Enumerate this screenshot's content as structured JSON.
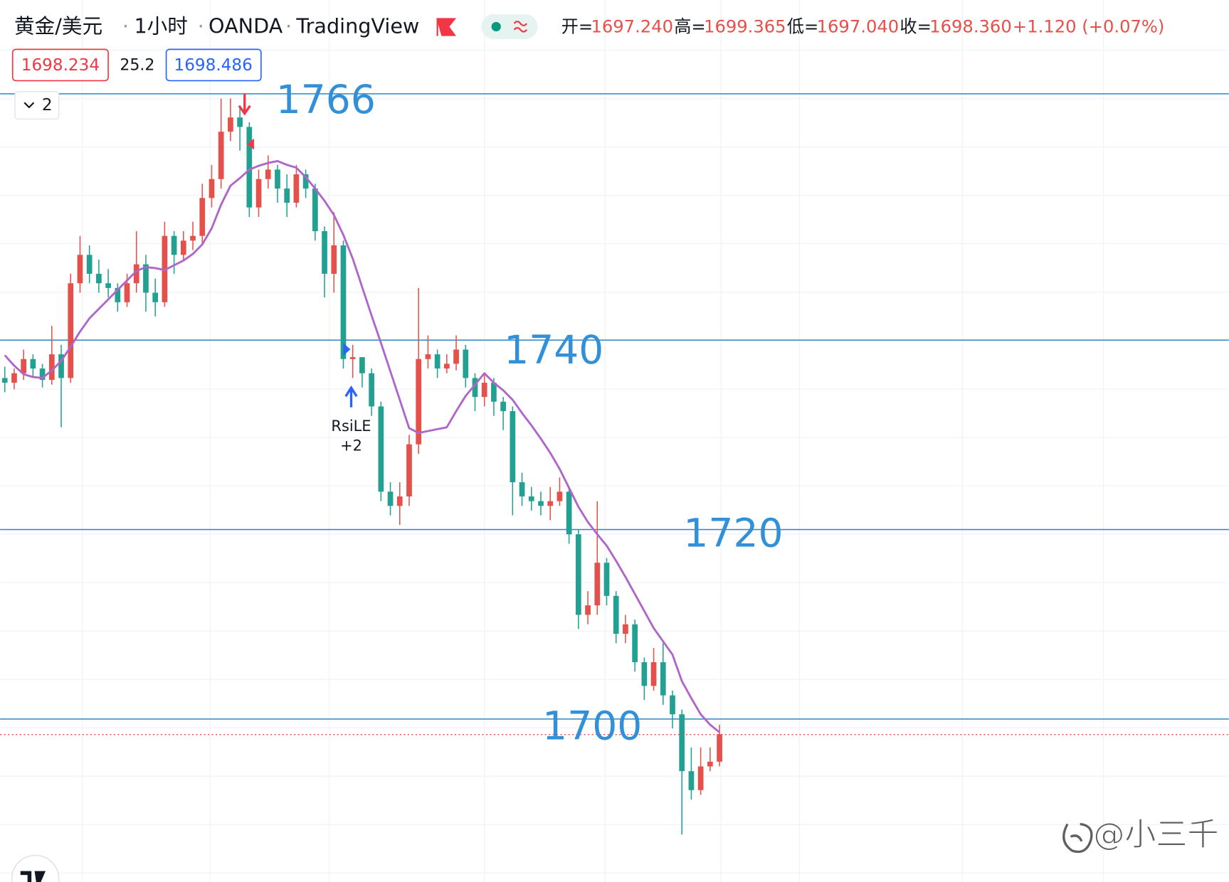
{
  "header": {
    "symbol": "黄金/美元",
    "interval": "1小时",
    "exchange": "OANDA",
    "source": "TradingView",
    "separator": "·",
    "ohlc": [
      {
        "name": "开=",
        "value": "1697.240"
      },
      {
        "name": "高=",
        "value": "1699.365"
      },
      {
        "name": "低=",
        "value": "1697.040"
      },
      {
        "name": "收=",
        "value": "1698.360"
      }
    ],
    "change": "+1.120 (+0.07%)"
  },
  "trade_box": {
    "sell": "1698.234",
    "spread": "25.2",
    "buy": "1698.486"
  },
  "indicator_count": "2",
  "watermark": "@小三千",
  "chart_data": {
    "type": "candlestick",
    "up_color": "#e5504a",
    "down_color": "#22a193",
    "ylim": [
      1682.8,
      1775.9
    ],
    "open": [
      1736,
      1735.5,
      1736.5,
      1738,
      1737,
      1735.8,
      1738.5,
      1736,
      1746,
      1749,
      1747,
      1746,
      1745.5,
      1744,
      1746,
      1748,
      1745,
      1744,
      1751,
      1749,
      1750.5,
      1751,
      1755,
      1757,
      1762,
      1763.5,
      1762.5,
      1754,
      1757,
      1758,
      1756,
      1754.5,
      1757.5,
      1756,
      1751.5,
      1747,
      1750,
      1738,
      1738.2,
      1736.5,
      1733,
      1724,
      1722.5,
      1723.5,
      1729,
      1738,
      1738.5,
      1737,
      1737.5,
      1739,
      1736,
      1734,
      1735.5,
      1733.5,
      1732.5,
      1725,
      1723.5,
      1723,
      1722.5,
      1723,
      1724,
      1719.5,
      1711,
      1712,
      1716.5,
      1713,
      1709,
      1710,
      1706,
      1703.5,
      1706,
      1702.5,
      1700.5,
      1694.5,
      1692.5,
      1695,
      1695.5
    ],
    "high": [
      1737.2,
      1737,
      1739,
      1738.5,
      1737.5,
      1741.5,
      1739.5,
      1747,
      1751,
      1750,
      1748.5,
      1747.5,
      1746,
      1747,
      1751.5,
      1749,
      1746.5,
      1752.5,
      1751.5,
      1751.5,
      1752.5,
      1756.5,
      1758.5,
      1765.5,
      1765.5,
      1764.5,
      1763,
      1758,
      1759.5,
      1758.5,
      1757.5,
      1758.5,
      1758,
      1756.5,
      1752,
      1753.5,
      1750.5,
      1739.5,
      1738,
      1737,
      1733.5,
      1725,
      1725,
      1730,
      1745.5,
      1740.5,
      1739,
      1738.5,
      1740.5,
      1739.5,
      1736.5,
      1736.5,
      1736,
      1734,
      1733,
      1726,
      1724.5,
      1724,
      1724.5,
      1725.5,
      1724.5,
      1720,
      1713.5,
      1723,
      1717,
      1713.5,
      1711,
      1710.5,
      1706.5,
      1707.5,
      1708,
      1703,
      1701,
      1697,
      1697,
      1697,
      1699.4
    ],
    "low": [
      1734.5,
      1734.8,
      1735.8,
      1736,
      1735,
      1735.3,
      1730.8,
      1735.5,
      1745,
      1746,
      1745,
      1744.5,
      1743,
      1743.5,
      1745,
      1743,
      1742.5,
      1743.5,
      1747,
      1748.5,
      1749.5,
      1750,
      1754,
      1756,
      1761,
      1760,
      1753,
      1753,
      1756,
      1754.5,
      1753,
      1754,
      1755,
      1750.5,
      1744.5,
      1745,
      1737,
      1736,
      1735,
      1732,
      1723,
      1721.5,
      1720.5,
      1722.5,
      1728,
      1737,
      1736,
      1736.5,
      1736.8,
      1735,
      1732.5,
      1733,
      1732,
      1730.5,
      1721.5,
      1722.5,
      1722,
      1721.5,
      1721,
      1722.5,
      1718.5,
      1709.5,
      1710,
      1711,
      1712,
      1708,
      1708,
      1705,
      1702,
      1703,
      1701.5,
      1699,
      1687.8,
      1691.5,
      1692,
      1694.5,
      1695
    ],
    "close": [
      1735.5,
      1736.5,
      1738,
      1737,
      1735.8,
      1738.5,
      1736,
      1746,
      1749,
      1747,
      1746,
      1745.5,
      1744,
      1746,
      1748,
      1745,
      1744,
      1751,
      1749,
      1750.5,
      1751,
      1755,
      1757,
      1762,
      1763.5,
      1762.5,
      1754,
      1757,
      1758,
      1756,
      1754.5,
      1757.5,
      1756,
      1751.5,
      1747,
      1750,
      1738,
      1738.2,
      1736.5,
      1733,
      1724,
      1722.5,
      1723.5,
      1729,
      1738,
      1738.5,
      1737,
      1737.5,
      1739,
      1736,
      1734,
      1735.5,
      1733.5,
      1732.5,
      1725,
      1723.5,
      1723,
      1722.5,
      1723,
      1724,
      1719.5,
      1711,
      1712,
      1716.5,
      1713,
      1709,
      1710,
      1706,
      1703.5,
      1706,
      1702.5,
      1700.5,
      1694.5,
      1692.5,
      1695,
      1695.5,
      1698.4
    ],
    "ma": {
      "color": "#b066c8",
      "values": [
        1738.4,
        1737.3,
        1736.4,
        1736.1,
        1736,
        1736.8,
        1737.8,
        1739.3,
        1740.9,
        1742.3,
        1743.3,
        1744.3,
        1745.3,
        1746.3,
        1747.3,
        1747.7,
        1747.6,
        1747.4,
        1747.9,
        1748.4,
        1749.1,
        1750.1,
        1751.8,
        1754.3,
        1756.3,
        1757.1,
        1758,
        1758.4,
        1758.7,
        1758.9,
        1758.5,
        1758.2,
        1757.2,
        1756,
        1754.7,
        1753.2,
        1751.1,
        1748.6,
        1745.6,
        1742.6,
        1739.7,
        1736.7,
        1733.7,
        1730.7,
        1730.2,
        1730.4,
        1730.6,
        1730.8,
        1732.5,
        1734.1,
        1735.3,
        1736.5,
        1735.5,
        1734.7,
        1733.7,
        1732.3,
        1731,
        1729.6,
        1728.1,
        1726.4,
        1724.4,
        1722.4,
        1720.8,
        1719.5,
        1718.3,
        1716.7,
        1715,
        1713.2,
        1711.4,
        1709.6,
        1708.2,
        1706.8,
        1704,
        1702.2,
        1700.5,
        1699.4,
        1698.6
      ]
    },
    "levels": [
      1766,
      1740,
      1720,
      1700
    ],
    "level_color": "#2c86c4",
    "last_price": 1698.36,
    "signal": {
      "label": "RsiLE",
      "sublabel": "+2"
    }
  }
}
